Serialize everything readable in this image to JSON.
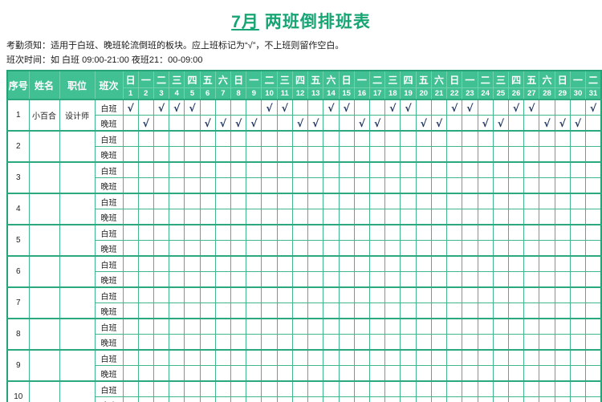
{
  "title": {
    "month": "7月",
    "text": "两班倒排班表",
    "accent_color": "#17a673"
  },
  "notes": {
    "line1": "考勤须知：适用于白班、晚班轮流倒班的板块。应上班标记为“√”，不上班则留作空白。",
    "line2": "班次时间：如  白班 09:00-21:00    夜班21：00-09:00"
  },
  "table": {
    "headers": {
      "no": "序号",
      "name": "姓名",
      "position": "职位",
      "shift": "班次"
    },
    "weekdays": [
      "日",
      "一",
      "二",
      "三",
      "四",
      "五",
      "六",
      "日",
      "一",
      "二",
      "三",
      "四",
      "五",
      "六",
      "日",
      "一",
      "二",
      "三",
      "四",
      "五",
      "六",
      "日",
      "一",
      "二",
      "三",
      "四",
      "五",
      "六",
      "日",
      "一",
      "二"
    ],
    "dates": [
      1,
      2,
      3,
      4,
      5,
      6,
      7,
      8,
      9,
      10,
      11,
      12,
      13,
      14,
      15,
      16,
      17,
      18,
      19,
      20,
      21,
      22,
      23,
      24,
      25,
      26,
      27,
      28,
      29,
      30,
      31
    ],
    "shift_labels": {
      "day": "白班",
      "night": "晚班"
    },
    "check_symbol": "√",
    "colors": {
      "header_bg": "#41c193",
      "grid_border": "#41b88c",
      "outer_border": "#26a277",
      "check": "#1e3560"
    },
    "rows": [
      {
        "no": "1",
        "name": "小百合",
        "position": "设计师",
        "day_checked_dates": [
          1,
          3,
          4,
          5,
          10,
          11,
          14,
          15,
          18,
          19,
          22,
          23,
          26,
          27,
          31
        ],
        "night_checked_dates": [
          2,
          6,
          7,
          8,
          9,
          12,
          13,
          16,
          17,
          20,
          21,
          24,
          25,
          28,
          29,
          30
        ]
      },
      {
        "no": "2",
        "name": "",
        "position": "",
        "day_checked_dates": [],
        "night_checked_dates": []
      },
      {
        "no": "3",
        "name": "",
        "position": "",
        "day_checked_dates": [],
        "night_checked_dates": []
      },
      {
        "no": "4",
        "name": "",
        "position": "",
        "day_checked_dates": [],
        "night_checked_dates": []
      },
      {
        "no": "5",
        "name": "",
        "position": "",
        "day_checked_dates": [],
        "night_checked_dates": []
      },
      {
        "no": "6",
        "name": "",
        "position": "",
        "day_checked_dates": [],
        "night_checked_dates": []
      },
      {
        "no": "7",
        "name": "",
        "position": "",
        "day_checked_dates": [],
        "night_checked_dates": []
      },
      {
        "no": "8",
        "name": "",
        "position": "",
        "day_checked_dates": [],
        "night_checked_dates": []
      },
      {
        "no": "9",
        "name": "",
        "position": "",
        "day_checked_dates": [],
        "night_checked_dates": []
      },
      {
        "no": "10",
        "name": "",
        "position": "",
        "day_checked_dates": [],
        "night_checked_dates": []
      }
    ]
  }
}
